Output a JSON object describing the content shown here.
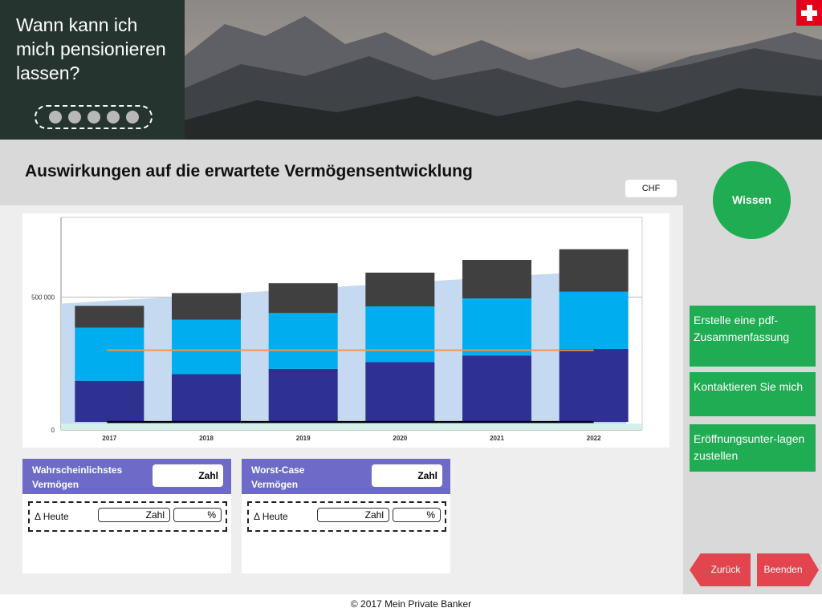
{
  "header": {
    "title": "Wann kann ich mich pensionieren lassen?",
    "progress_dots": 5,
    "flag_icon": "swiss-cross-icon"
  },
  "main": {
    "title": "Auswirkungen auf die erwartete Vermögensentwicklung",
    "currency": "CHF"
  },
  "chart_data": {
    "type": "bar",
    "stacked": true,
    "categories": [
      "2017",
      "2018",
      "2019",
      "2020",
      "2021",
      "2022"
    ],
    "series": [
      {
        "name": "",
        "color": "#2e3192",
        "values": [
          155000,
          180000,
          200000,
          225000,
          250000,
          275000
        ]
      },
      {
        "name": "",
        "color": "#00aeef",
        "values": [
          200000,
          205000,
          210000,
          210000,
          215000,
          215000
        ]
      },
      {
        "name": "",
        "color": "#404040",
        "values": [
          82000,
          100000,
          112000,
          127000,
          145000,
          160000
        ]
      }
    ],
    "background_area": {
      "color": "#c5d9f1",
      "start": 475000,
      "end": 605000
    },
    "reference_line": {
      "color": "#f79646",
      "value": 300000
    },
    "baseline_line": {
      "color": "#000000",
      "value": 30000
    },
    "ytick_labels": [
      "0",
      "500 000"
    ],
    "ylim": [
      0,
      800000
    ],
    "grid": true
  },
  "cards": [
    {
      "label": "Wahrscheinlichstes Vermögen",
      "value": "Zahl",
      "delta_label": "Δ Heute",
      "delta_value": "Zahl",
      "delta_pct": "%"
    },
    {
      "label": "Worst-Case Vermögen",
      "value": "Zahl",
      "delta_label": "Δ Heute",
      "delta_value": "Zahl",
      "delta_pct": "%"
    }
  ],
  "sidebar": {
    "wissen": "Wissen",
    "actions": [
      "Erstelle eine pdf-Zusammenfassung",
      "Kontaktieren Sie mich",
      "Eröffnungsunter-lagen zustellen"
    ],
    "back": "Zurück",
    "end": "Beenden"
  },
  "footer": "© 2017 Mein Private Banker",
  "colors": {
    "accent_green": "#1fac52",
    "card_purple": "#6d6bc7",
    "nav_red": "#e2454e"
  }
}
